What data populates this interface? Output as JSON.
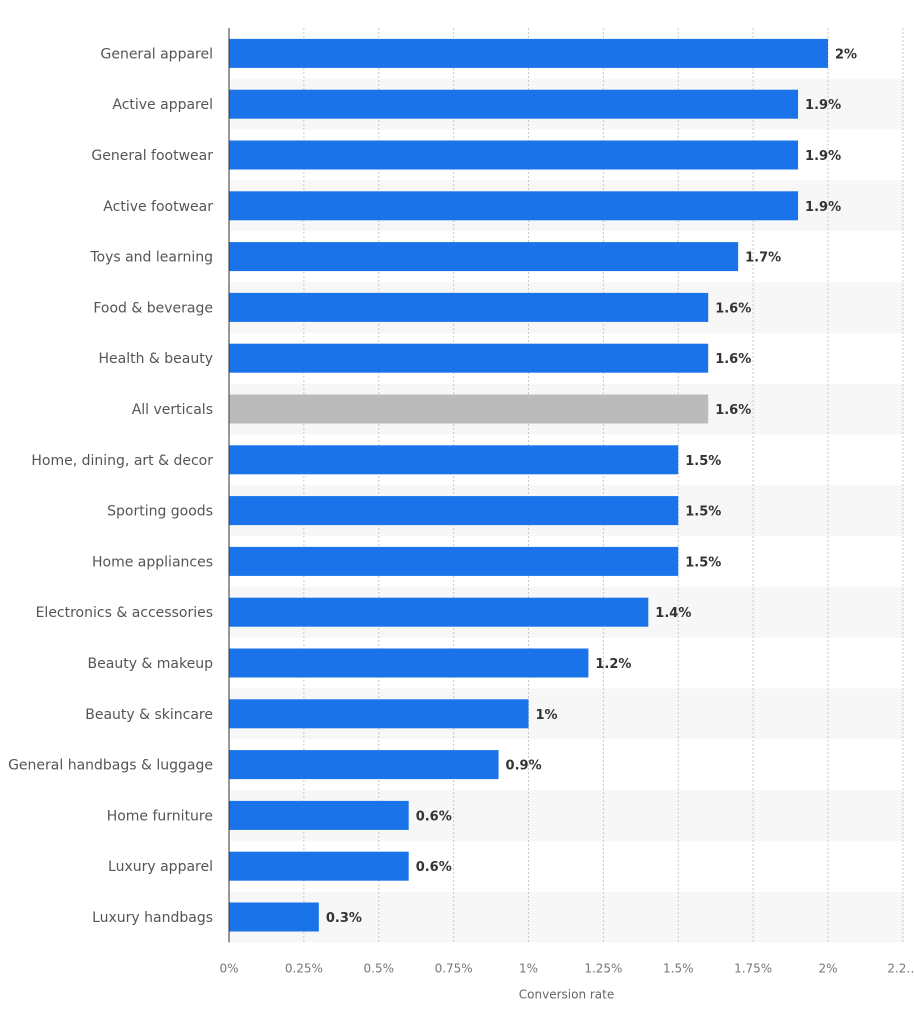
{
  "chart_data": {
    "type": "bar",
    "orientation": "horizontal",
    "categories": [
      "General apparel",
      "Active apparel",
      "General footwear",
      "Active footwear",
      "Toys and learning",
      "Food & beverage",
      "Health & beauty",
      "All verticals",
      "Home, dining, art & decor",
      "Sporting goods",
      "Home appliances",
      "Electronics & accessories",
      "Beauty & makeup",
      "Beauty & skincare",
      "General handbags & luggage",
      "Home furniture",
      "Luxury apparel",
      "Luxury handbags"
    ],
    "values": [
      2,
      1.9,
      1.9,
      1.9,
      1.7,
      1.6,
      1.6,
      1.6,
      1.5,
      1.5,
      1.5,
      1.4,
      1.2,
      1,
      0.9,
      0.6,
      0.6,
      0.3
    ],
    "value_labels": [
      "2%",
      "1.9%",
      "1.9%",
      "1.9%",
      "1.7%",
      "1.6%",
      "1.6%",
      "1.6%",
      "1.5%",
      "1.5%",
      "1.5%",
      "1.4%",
      "1.2%",
      "1%",
      "0.9%",
      "0.6%",
      "0.6%",
      "0.3%"
    ],
    "highlight_category": "All verticals",
    "xlabel": "Conversion rate",
    "ylabel": "",
    "title": "",
    "xlim": [
      0,
      2.25
    ],
    "x_ticks": [
      0,
      0.25,
      0.5,
      0.75,
      1,
      1.25,
      1.5,
      1.75,
      2,
      2.25
    ],
    "x_tick_labels": [
      "0%",
      "0.25%",
      "0.5%",
      "0.75%",
      "1%",
      "1.25%",
      "1.5%",
      "1.75%",
      "2%",
      "2.2…"
    ],
    "grid": true,
    "legend": "none",
    "colors": {
      "bar": "#1a73e8",
      "highlight": "#bbbbbb",
      "band": "#f7f7f7"
    }
  }
}
